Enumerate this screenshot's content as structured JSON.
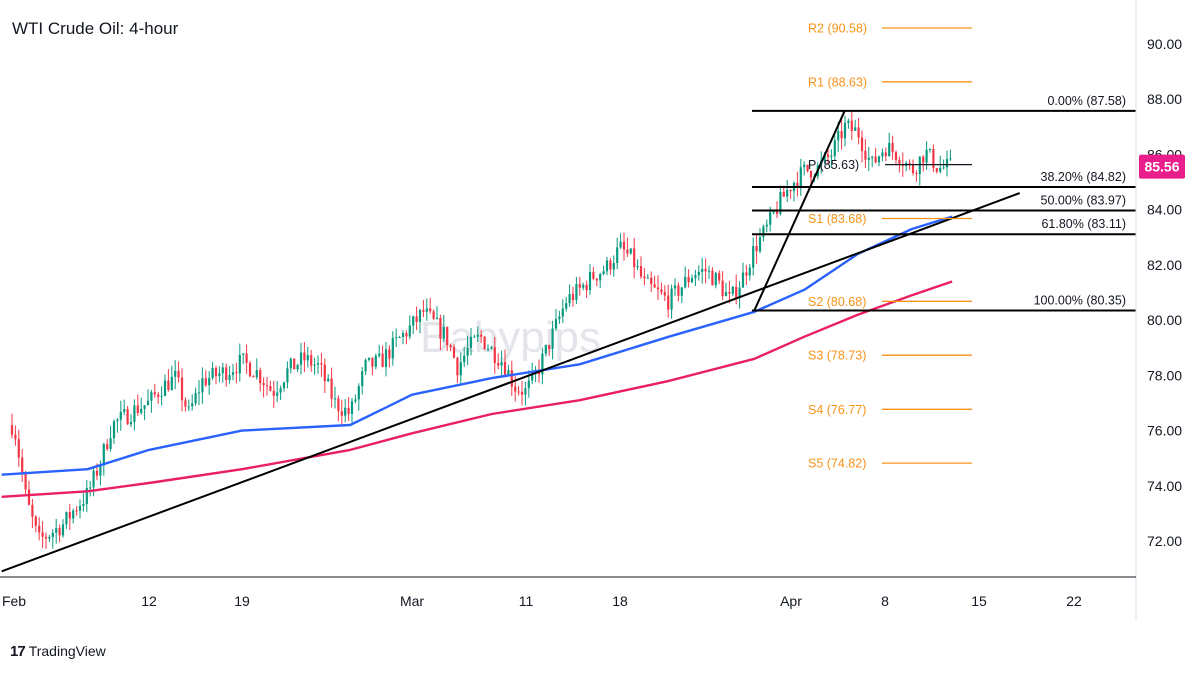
{
  "chart_data": {
    "type": "candlestick",
    "title": "WTI Crude Oil: 4-hour",
    "watermark": "Babypips",
    "brand": "TradingView",
    "current_price": 85.56,
    "current_price_label": "85.56",
    "ylim": [
      70.8,
      92.0
    ],
    "y_ticks": [
      "72.00",
      "74.00",
      "76.00",
      "78.00",
      "80.00",
      "82.00",
      "84.00",
      "86.00",
      "88.00",
      "90.00"
    ],
    "x_ticks": [
      {
        "label": "Feb",
        "date": "2024-02-01"
      },
      {
        "label": "12",
        "date": "2024-02-12"
      },
      {
        "label": "19",
        "date": "2024-02-19"
      },
      {
        "label": "Mar",
        "date": "2024-03-01"
      },
      {
        "label": "11",
        "date": "2024-03-11"
      },
      {
        "label": "18",
        "date": "2024-03-18"
      },
      {
        "label": "Apr",
        "date": "2024-04-01"
      },
      {
        "label": "8",
        "date": "2024-04-08"
      },
      {
        "label": "15",
        "date": "2024-04-15"
      },
      {
        "label": "22",
        "date": "2024-04-22"
      }
    ],
    "price_path": [
      [
        "2024-02-01",
        76.2
      ],
      [
        "2024-02-02",
        73.5
      ],
      [
        "2024-02-03",
        72.0
      ],
      [
        "2024-02-05",
        72.6
      ],
      [
        "2024-02-06",
        73.2
      ],
      [
        "2024-02-07",
        73.7
      ],
      [
        "2024-02-08",
        74.8
      ],
      [
        "2024-02-09",
        76.2
      ],
      [
        "2024-02-10",
        76.5
      ],
      [
        "2024-02-11",
        76.8
      ],
      [
        "2024-02-12",
        77.0
      ],
      [
        "2024-02-13",
        77.6
      ],
      [
        "2024-02-14",
        77.9
      ],
      [
        "2024-02-15",
        76.6
      ],
      [
        "2024-02-16",
        77.8
      ],
      [
        "2024-02-17",
        78.0
      ],
      [
        "2024-02-18",
        78.2
      ],
      [
        "2024-02-19",
        78.5
      ],
      [
        "2024-02-20",
        78.1
      ],
      [
        "2024-02-21",
        77.4
      ],
      [
        "2024-02-22",
        78.2
      ],
      [
        "2024-02-23",
        78.6
      ],
      [
        "2024-02-24",
        78.3
      ],
      [
        "2024-02-25",
        77.0
      ],
      [
        "2024-02-26",
        76.6
      ],
      [
        "2024-02-27",
        78.3
      ],
      [
        "2024-02-28",
        78.5
      ],
      [
        "2024-02-29",
        79.2
      ],
      [
        "2024-03-01",
        79.8
      ],
      [
        "2024-03-02",
        80.3
      ],
      [
        "2024-03-04",
        79.4
      ],
      [
        "2024-03-05",
        78.3
      ],
      [
        "2024-03-06",
        79.0
      ],
      [
        "2024-03-07",
        79.4
      ],
      [
        "2024-03-08",
        78.9
      ],
      [
        "2024-03-09",
        78.5
      ],
      [
        "2024-03-10",
        77.6
      ],
      [
        "2024-03-11",
        77.4
      ],
      [
        "2024-03-12",
        78.3
      ],
      [
        "2024-03-13",
        79.5
      ],
      [
        "2024-03-14",
        80.7
      ],
      [
        "2024-03-15",
        81.1
      ],
      [
        "2024-03-16",
        81.6
      ],
      [
        "2024-03-17",
        81.9
      ],
      [
        "2024-03-18",
        82.6
      ],
      [
        "2024-03-19",
        82.2
      ],
      [
        "2024-03-20",
        81.3
      ],
      [
        "2024-03-21",
        81.0
      ],
      [
        "2024-03-22",
        80.7
      ],
      [
        "2024-03-23",
        81.2
      ],
      [
        "2024-03-24",
        81.7
      ],
      [
        "2024-03-25",
        81.8
      ],
      [
        "2024-03-26",
        81.4
      ],
      [
        "2024-03-27",
        80.7
      ],
      [
        "2024-03-28",
        81.5
      ],
      [
        "2024-03-29",
        82.6
      ],
      [
        "2024-03-30",
        83.3
      ],
      [
        "2024-03-31",
        84.2
      ],
      [
        "2024-04-01",
        84.9
      ],
      [
        "2024-04-02",
        85.4
      ],
      [
        "2024-04-03",
        85.5
      ],
      [
        "2024-04-04",
        86.0
      ],
      [
        "2024-04-05",
        87.0
      ],
      [
        "2024-04-06",
        86.8
      ],
      [
        "2024-04-07",
        85.6
      ],
      [
        "2024-04-08",
        86.3
      ],
      [
        "2024-04-09",
        86.0
      ],
      [
        "2024-04-10",
        85.4
      ],
      [
        "2024-04-11",
        86.1
      ],
      [
        "2024-04-12",
        85.5
      ],
      [
        "2024-04-13",
        85.56
      ]
    ],
    "moving_averages": [
      {
        "color": "#2962ff",
        "points": [
          [
            "2024-01-31",
            74.4
          ],
          [
            "2024-02-07",
            74.6
          ],
          [
            "2024-02-12",
            75.3
          ],
          [
            "2024-02-19",
            76.0
          ],
          [
            "2024-02-26",
            76.2
          ],
          [
            "2024-03-01",
            77.3
          ],
          [
            "2024-03-08",
            77.9
          ],
          [
            "2024-03-15",
            78.4
          ],
          [
            "2024-03-22",
            79.4
          ],
          [
            "2024-03-29",
            80.3
          ],
          [
            "2024-04-02",
            81.1
          ],
          [
            "2024-04-06",
            82.4
          ],
          [
            "2024-04-10",
            83.3
          ],
          [
            "2024-04-13",
            83.75
          ]
        ]
      },
      {
        "color": "#e91e63",
        "points": [
          [
            "2024-01-31",
            73.6
          ],
          [
            "2024-02-07",
            73.8
          ],
          [
            "2024-02-12",
            74.1
          ],
          [
            "2024-02-19",
            74.6
          ],
          [
            "2024-02-26",
            75.3
          ],
          [
            "2024-03-01",
            75.9
          ],
          [
            "2024-03-08",
            76.6
          ],
          [
            "2024-03-15",
            77.1
          ],
          [
            "2024-03-22",
            77.8
          ],
          [
            "2024-03-29",
            78.6
          ],
          [
            "2024-04-02",
            79.4
          ],
          [
            "2024-04-06",
            80.2
          ],
          [
            "2024-04-10",
            80.9
          ],
          [
            "2024-04-13",
            81.4
          ]
        ]
      }
    ],
    "trendlines": [
      {
        "from": [
          "2024-01-31",
          70.9
        ],
        "to": [
          "2024-04-18",
          84.6
        ]
      },
      {
        "from": [
          "2024-03-29",
          80.35
        ],
        "to": [
          "2024-04-05",
          87.58
        ]
      }
    ],
    "pivots": [
      {
        "label": "R2 (90.58)",
        "value": 90.58
      },
      {
        "label": "R1 (88.63)",
        "value": 88.63
      },
      {
        "label": "P (85.63)",
        "value": 85.63
      },
      {
        "label": "S1 (83.68)",
        "value": 83.68
      },
      {
        "label": "S2 (80.68)",
        "value": 80.68
      },
      {
        "label": "S3 (78.73)",
        "value": 78.73
      },
      {
        "label": "S4 (76.77)",
        "value": 76.77
      },
      {
        "label": "S5 (74.82)",
        "value": 74.82
      }
    ],
    "fibonacci": [
      {
        "label": "0.00% (87.58)",
        "value": 87.58
      },
      {
        "label": "38.20% (84.82)",
        "value": 84.82
      },
      {
        "label": "50.00% (83.97)",
        "value": 83.97
      },
      {
        "label": "61.80% (83.11)",
        "value": 83.11
      },
      {
        "label": "100.00% (80.35)",
        "value": 80.35
      }
    ],
    "colors": {
      "up": "#089981",
      "down": "#f23645",
      "pivot": "#f7931a",
      "fib": "#000000",
      "price_tag": "#e91e8c",
      "axis": "#131722"
    }
  }
}
